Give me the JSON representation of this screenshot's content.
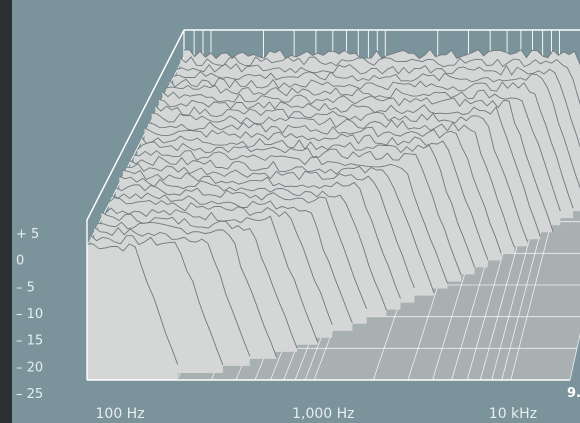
{
  "chart_data": {
    "type": "waterfall",
    "title": "",
    "y_tick_labels": [
      "+ 5",
      "0",
      "– 5",
      "– 10",
      "– 15",
      "– 20",
      "– 25"
    ],
    "y_tick_values": [
      5,
      0,
      -5,
      -10,
      -15,
      -20,
      -25
    ],
    "ylim": [
      -25,
      5
    ],
    "x_tick_labels": [
      "100 Hz",
      "1,000 Hz",
      "10 kHz"
    ],
    "x_tick_values": [
      100,
      1000,
      10000
    ],
    "x_scale": "log",
    "time_axis_end_label": "9.",
    "colors": {
      "panel": "#7b939a",
      "floor": "#a9b0b2",
      "surface": "#d4d7d6",
      "grid": "#ffffff",
      "trace": "#707a7e"
    }
  }
}
